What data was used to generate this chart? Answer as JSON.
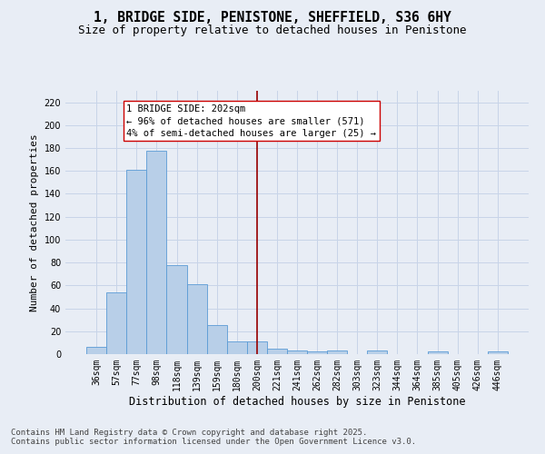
{
  "title": "1, BRIDGE SIDE, PENISTONE, SHEFFIELD, S36 6HY",
  "subtitle": "Size of property relative to detached houses in Penistone",
  "xlabel": "Distribution of detached houses by size in Penistone",
  "ylabel": "Number of detached properties",
  "categories": [
    "36sqm",
    "57sqm",
    "77sqm",
    "98sqm",
    "118sqm",
    "139sqm",
    "159sqm",
    "180sqm",
    "200sqm",
    "221sqm",
    "241sqm",
    "262sqm",
    "282sqm",
    "303sqm",
    "323sqm",
    "344sqm",
    "364sqm",
    "385sqm",
    "405sqm",
    "426sqm",
    "446sqm"
  ],
  "values": [
    6,
    54,
    161,
    178,
    78,
    61,
    25,
    11,
    11,
    5,
    3,
    2,
    3,
    0,
    3,
    0,
    0,
    2,
    0,
    0,
    2
  ],
  "bar_color": "#b8cfe8",
  "bar_edge_color": "#5b9bd5",
  "vline_x": 8,
  "vline_color": "#990000",
  "annotation_text": "1 BRIDGE SIDE: 202sqm\n← 96% of detached houses are smaller (571)\n4% of semi-detached houses are larger (25) →",
  "annotation_box_color": "white",
  "annotation_box_edge_color": "#cc0000",
  "ylim": [
    0,
    230
  ],
  "yticks": [
    0,
    20,
    40,
    60,
    80,
    100,
    120,
    140,
    160,
    180,
    200,
    220
  ],
  "grid_color": "#c8d4e8",
  "background_color": "#e8edf5",
  "footer1": "Contains HM Land Registry data © Crown copyright and database right 2025.",
  "footer2": "Contains public sector information licensed under the Open Government Licence v3.0.",
  "title_fontsize": 10.5,
  "subtitle_fontsize": 9,
  "axis_label_fontsize": 8,
  "tick_fontsize": 7,
  "annotation_fontsize": 7.5,
  "footer_fontsize": 6.5
}
